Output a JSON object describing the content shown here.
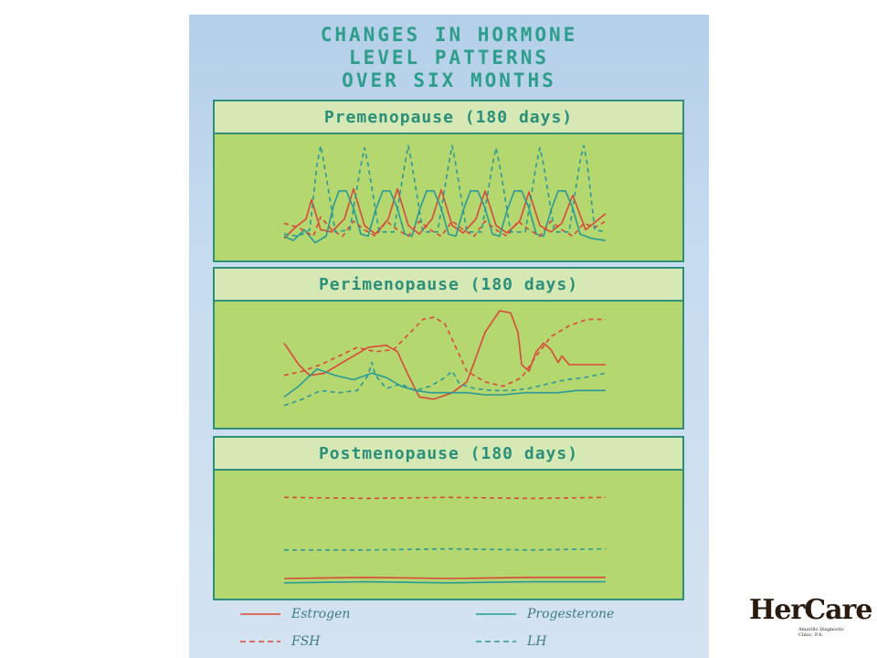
{
  "title": [
    "CHANGES IN HORMONE",
    "LEVEL PATTERNS",
    "OVER SIX MONTHS"
  ],
  "colors": {
    "estrogen": "#d9483a",
    "progesterone": "#2a9a96",
    "fsh": "#d9483a",
    "lh": "#2a9a96",
    "panel": "#b5d770",
    "header": "#d6e9b4"
  },
  "chart_data": [
    {
      "type": "line",
      "title": "Premenopause (180 days)",
      "xlabel": "",
      "ylabel": "",
      "xlim": [
        0,
        180
      ],
      "ylim": [
        0,
        100
      ],
      "series": [
        {
          "name": "Estrogen",
          "style": "solid",
          "color": "#d9483a",
          "points": [
            [
              0,
              12
            ],
            [
              6,
              22
            ],
            [
              12,
              30
            ],
            [
              15,
              48
            ],
            [
              20,
              20
            ],
            [
              26,
              18
            ],
            [
              33,
              30
            ],
            [
              38,
              58
            ],
            [
              44,
              24
            ],
            [
              50,
              16
            ],
            [
              57,
              30
            ],
            [
              62,
              58
            ],
            [
              68,
              24
            ],
            [
              74,
              16
            ],
            [
              81,
              30
            ],
            [
              86,
              57
            ],
            [
              92,
              24
            ],
            [
              98,
              17
            ],
            [
              105,
              30
            ],
            [
              110,
              56
            ],
            [
              116,
              24
            ],
            [
              122,
              17
            ],
            [
              129,
              28
            ],
            [
              134,
              55
            ],
            [
              140,
              24
            ],
            [
              146,
              18
            ],
            [
              152,
              26
            ],
            [
              158,
              52
            ],
            [
              165,
              20
            ],
            [
              176,
              35
            ]
          ]
        },
        {
          "name": "Progesterone",
          "style": "solid",
          "color": "#2a9a96",
          "points": [
            [
              0,
              14
            ],
            [
              5,
              10
            ],
            [
              11,
              20
            ],
            [
              17,
              8
            ],
            [
              23,
              14
            ],
            [
              27,
              42
            ],
            [
              30,
              56
            ],
            [
              34,
              56
            ],
            [
              38,
              40
            ],
            [
              42,
              16
            ],
            [
              46,
              14
            ],
            [
              50,
              38
            ],
            [
              54,
              56
            ],
            [
              58,
              56
            ],
            [
              62,
              40
            ],
            [
              66,
              16
            ],
            [
              70,
              14
            ],
            [
              74,
              38
            ],
            [
              78,
              56
            ],
            [
              82,
              56
            ],
            [
              86,
              40
            ],
            [
              90,
              16
            ],
            [
              94,
              14
            ],
            [
              98,
              38
            ],
            [
              102,
              56
            ],
            [
              106,
              56
            ],
            [
              110,
              40
            ],
            [
              114,
              16
            ],
            [
              118,
              14
            ],
            [
              122,
              38
            ],
            [
              126,
              56
            ],
            [
              130,
              56
            ],
            [
              134,
              40
            ],
            [
              138,
              16
            ],
            [
              142,
              14
            ],
            [
              146,
              38
            ],
            [
              150,
              56
            ],
            [
              154,
              56
            ],
            [
              158,
              40
            ],
            [
              162,
              16
            ],
            [
              168,
              12
            ],
            [
              176,
              10
            ]
          ]
        },
        {
          "name": "FSH",
          "style": "dashed",
          "color": "#d9483a",
          "points": [
            [
              0,
              26
            ],
            [
              8,
              22
            ],
            [
              16,
              14
            ],
            [
              20,
              32
            ],
            [
              26,
              20
            ],
            [
              32,
              14
            ],
            [
              38,
              28
            ],
            [
              44,
              20
            ],
            [
              50,
              14
            ],
            [
              56,
              28
            ],
            [
              62,
              20
            ],
            [
              68,
              14
            ],
            [
              74,
              28
            ],
            [
              80,
              20
            ],
            [
              86,
              14
            ],
            [
              92,
              28
            ],
            [
              98,
              20
            ],
            [
              104,
              14
            ],
            [
              110,
              28
            ],
            [
              116,
              20
            ],
            [
              122,
              14
            ],
            [
              128,
              28
            ],
            [
              134,
              20
            ],
            [
              140,
              14
            ],
            [
              146,
              28
            ],
            [
              152,
              20
            ],
            [
              158,
              14
            ],
            [
              164,
              26
            ],
            [
              170,
              22
            ],
            [
              176,
              28
            ]
          ]
        },
        {
          "name": "LH",
          "style": "dashed",
          "color": "#2a9a96",
          "points": [
            [
              0,
              16
            ],
            [
              8,
              14
            ],
            [
              14,
              20
            ],
            [
              18,
              80
            ],
            [
              20,
              98
            ],
            [
              22,
              80
            ],
            [
              28,
              18
            ],
            [
              36,
              20
            ],
            [
              42,
              80
            ],
            [
              44,
              96
            ],
            [
              46,
              80
            ],
            [
              52,
              18
            ],
            [
              60,
              18
            ],
            [
              66,
              80
            ],
            [
              68,
              98
            ],
            [
              70,
              80
            ],
            [
              76,
              18
            ],
            [
              84,
              18
            ],
            [
              90,
              80
            ],
            [
              92,
              98
            ],
            [
              94,
              80
            ],
            [
              100,
              18
            ],
            [
              108,
              18
            ],
            [
              114,
              80
            ],
            [
              116,
              96
            ],
            [
              118,
              80
            ],
            [
              124,
              18
            ],
            [
              132,
              18
            ],
            [
              138,
              80
            ],
            [
              140,
              96
            ],
            [
              142,
              80
            ],
            [
              148,
              18
            ],
            [
              156,
              18
            ],
            [
              162,
              84
            ],
            [
              164,
              98
            ],
            [
              166,
              80
            ],
            [
              170,
              20
            ],
            [
              176,
              18
            ]
          ]
        }
      ]
    },
    {
      "type": "line",
      "title": "Perimenopause (180 days)",
      "xlabel": "",
      "ylabel": "",
      "xlim": [
        0,
        180
      ],
      "ylim": [
        0,
        100
      ],
      "series": [
        {
          "name": "Estrogen",
          "style": "solid",
          "color": "#d9483a",
          "points": [
            [
              0,
              70
            ],
            [
              8,
              50
            ],
            [
              14,
              40
            ],
            [
              22,
              42
            ],
            [
              32,
              52
            ],
            [
              46,
              66
            ],
            [
              56,
              68
            ],
            [
              62,
              62
            ],
            [
              68,
              40
            ],
            [
              74,
              20
            ],
            [
              82,
              18
            ],
            [
              92,
              24
            ],
            [
              100,
              34
            ],
            [
              104,
              52
            ],
            [
              110,
              80
            ],
            [
              118,
              100
            ],
            [
              124,
              98
            ],
            [
              128,
              80
            ],
            [
              130,
              50
            ],
            [
              134,
              44
            ],
            [
              138,
              62
            ],
            [
              142,
              70
            ],
            [
              146,
              64
            ],
            [
              150,
              52
            ],
            [
              152,
              58
            ],
            [
              154,
              54
            ],
            [
              156,
              50
            ],
            [
              160,
              50
            ],
            [
              176,
              50
            ]
          ]
        },
        {
          "name": "Progesterone",
          "style": "solid",
          "color": "#2a9a96",
          "points": [
            [
              0,
              20
            ],
            [
              8,
              30
            ],
            [
              18,
              46
            ],
            [
              28,
              40
            ],
            [
              38,
              36
            ],
            [
              48,
              42
            ],
            [
              56,
              38
            ],
            [
              64,
              30
            ],
            [
              72,
              26
            ],
            [
              80,
              24
            ],
            [
              90,
              24
            ],
            [
              100,
              24
            ],
            [
              110,
              22
            ],
            [
              120,
              22
            ],
            [
              132,
              24
            ],
            [
              140,
              24
            ],
            [
              150,
              24
            ],
            [
              160,
              26
            ],
            [
              176,
              26
            ]
          ]
        },
        {
          "name": "FSH",
          "style": "dashed",
          "color": "#d9483a",
          "points": [
            [
              0,
              40
            ],
            [
              10,
              44
            ],
            [
              20,
              50
            ],
            [
              30,
              58
            ],
            [
              40,
              66
            ],
            [
              50,
              62
            ],
            [
              60,
              64
            ],
            [
              68,
              78
            ],
            [
              76,
              92
            ],
            [
              82,
              94
            ],
            [
              88,
              88
            ],
            [
              94,
              66
            ],
            [
              100,
              44
            ],
            [
              110,
              34
            ],
            [
              120,
              30
            ],
            [
              130,
              38
            ],
            [
              138,
              58
            ],
            [
              146,
              76
            ],
            [
              156,
              86
            ],
            [
              166,
              92
            ],
            [
              176,
              92
            ]
          ]
        },
        {
          "name": "LH",
          "style": "dashed",
          "color": "#2a9a96",
          "points": [
            [
              0,
              12
            ],
            [
              10,
              18
            ],
            [
              20,
              26
            ],
            [
              30,
              24
            ],
            [
              40,
              26
            ],
            [
              46,
              40
            ],
            [
              48,
              52
            ],
            [
              50,
              40
            ],
            [
              56,
              28
            ],
            [
              64,
              32
            ],
            [
              72,
              26
            ],
            [
              80,
              30
            ],
            [
              88,
              38
            ],
            [
              92,
              44
            ],
            [
              96,
              32
            ],
            [
              104,
              28
            ],
            [
              114,
              26
            ],
            [
              124,
              26
            ],
            [
              134,
              28
            ],
            [
              144,
              32
            ],
            [
              154,
              36
            ],
            [
              164,
              38
            ],
            [
              176,
              42
            ]
          ]
        }
      ]
    },
    {
      "type": "line",
      "title": "Postmenopause (180 days)",
      "xlabel": "",
      "ylabel": "",
      "xlim": [
        0,
        180
      ],
      "ylim": [
        0,
        100
      ],
      "series": [
        {
          "name": "Estrogen",
          "style": "solid",
          "color": "#d9483a",
          "points": [
            [
              0,
              10
            ],
            [
              45,
              11
            ],
            [
              90,
              10
            ],
            [
              135,
              11
            ],
            [
              176,
              11
            ]
          ]
        },
        {
          "name": "Progesterone",
          "style": "solid",
          "color": "#2a9a96",
          "points": [
            [
              0,
              6
            ],
            [
              45,
              7
            ],
            [
              90,
              6
            ],
            [
              135,
              7
            ],
            [
              176,
              7
            ]
          ]
        },
        {
          "name": "FSH",
          "style": "dashed",
          "color": "#d9483a",
          "points": [
            [
              0,
              84
            ],
            [
              45,
              83
            ],
            [
              90,
              84
            ],
            [
              135,
              83
            ],
            [
              176,
              84
            ]
          ]
        },
        {
          "name": "LH",
          "style": "dashed",
          "color": "#2a9a96",
          "points": [
            [
              0,
              36
            ],
            [
              45,
              36
            ],
            [
              90,
              37
            ],
            [
              135,
              36
            ],
            [
              176,
              37
            ]
          ]
        }
      ]
    }
  ],
  "legend": [
    {
      "label": "Estrogen",
      "style": "solid",
      "color": "#d9483a"
    },
    {
      "label": "Progesterone",
      "style": "solid",
      "color": "#2a9a96"
    },
    {
      "label": "FSH",
      "style": "dashed",
      "color": "#d9483a"
    },
    {
      "label": "LH",
      "style": "dashed",
      "color": "#2a9a96"
    }
  ],
  "logo": {
    "name": "HerCare",
    "org": "Amarillo Diagnostic Clinic, P.A."
  }
}
